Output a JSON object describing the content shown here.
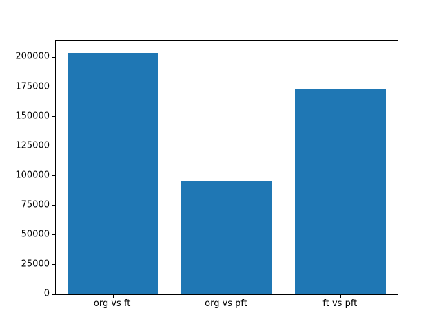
{
  "chart_data": {
    "type": "bar",
    "categories": [
      "org vs ft",
      "org vs pft",
      "ft vs pft"
    ],
    "values": [
      204000,
      95000,
      173000
    ],
    "title": "",
    "xlabel": "",
    "ylabel": "",
    "ylim": [
      0,
      214200
    ],
    "yticks": [
      0,
      25000,
      50000,
      75000,
      100000,
      125000,
      150000,
      175000,
      200000
    ],
    "bar_color": "#1f77b4",
    "bar_width_fraction": 0.8,
    "grid": false,
    "legend_position": "none",
    "background_color": "#ffffff",
    "axes_border_color": "#000000"
  }
}
